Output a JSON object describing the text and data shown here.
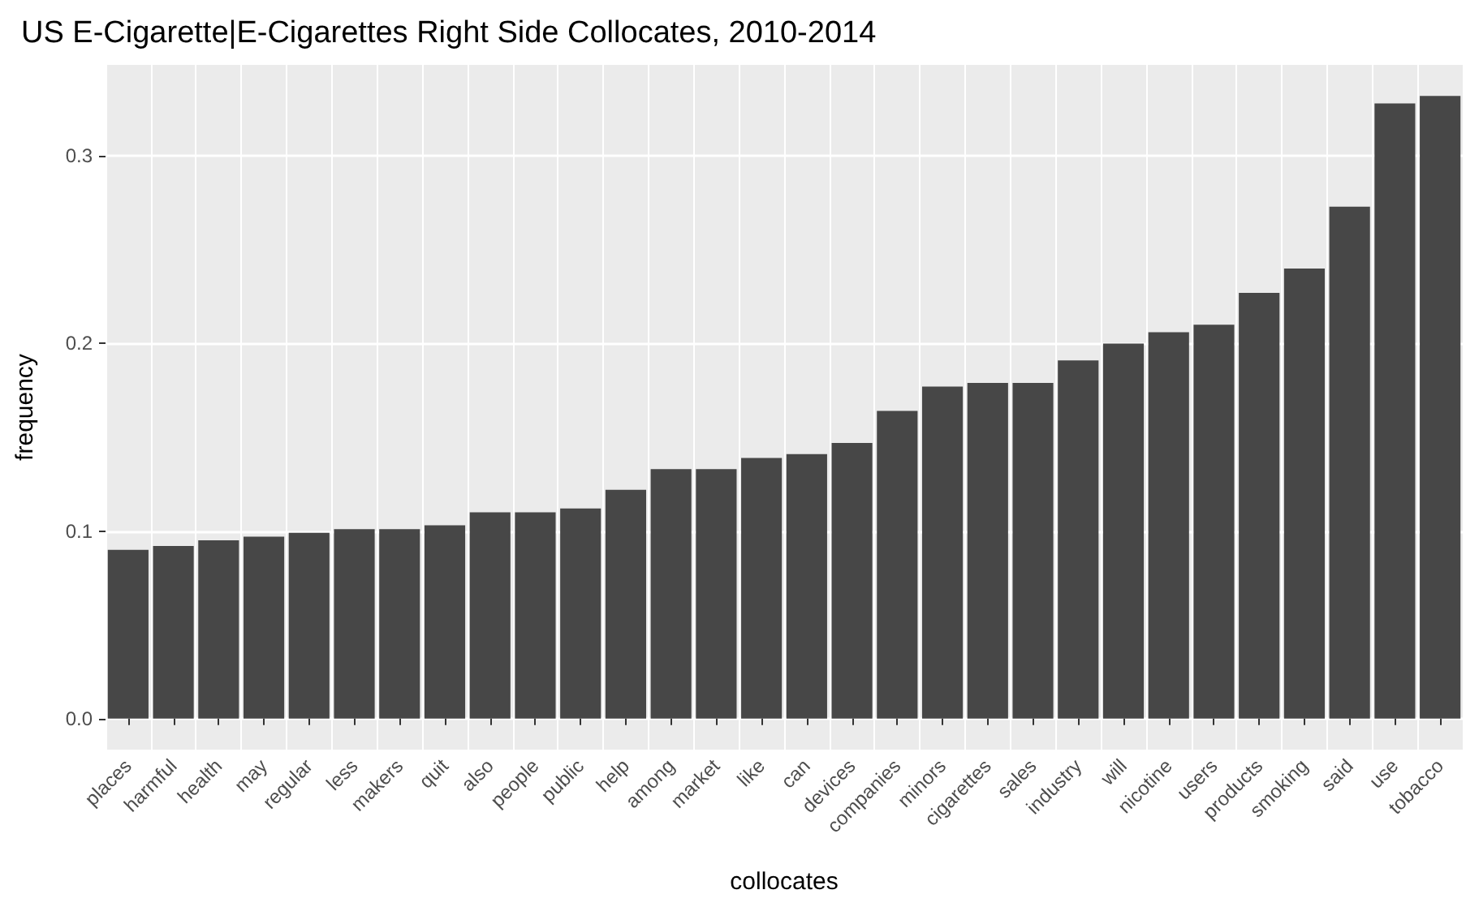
{
  "chart_data": {
    "type": "bar",
    "title": "US E-Cigarette|E-Cigarettes Right Side Collocates, 2010-2014",
    "xlabel": "collocates",
    "ylabel": "frequency",
    "categories": [
      "places",
      "harmful",
      "health",
      "may",
      "regular",
      "less",
      "makers",
      "quit",
      "also",
      "people",
      "public",
      "help",
      "among",
      "market",
      "like",
      "can",
      "devices",
      "companies",
      "minors",
      "cigarettes",
      "sales",
      "industry",
      "will",
      "nicotine",
      "users",
      "products",
      "smoking",
      "said",
      "use",
      "tobacco"
    ],
    "values": [
      0.09,
      0.092,
      0.095,
      0.097,
      0.099,
      0.101,
      0.101,
      0.103,
      0.11,
      0.11,
      0.112,
      0.122,
      0.133,
      0.133,
      0.139,
      0.141,
      0.147,
      0.164,
      0.177,
      0.179,
      0.179,
      0.191,
      0.2,
      0.206,
      0.21,
      0.227,
      0.24,
      0.273,
      0.328,
      0.332
    ],
    "color": "#474747",
    "ylim": [
      -0.0166,
      0.3486
    ],
    "yticks": [
      {
        "value": 0,
        "label": "0.0"
      },
      {
        "value": 0.1,
        "label": "0.1"
      },
      {
        "value": 0.2,
        "label": "0.2"
      },
      {
        "value": 0.3,
        "label": "0.3"
      }
    ],
    "grid": true
  }
}
